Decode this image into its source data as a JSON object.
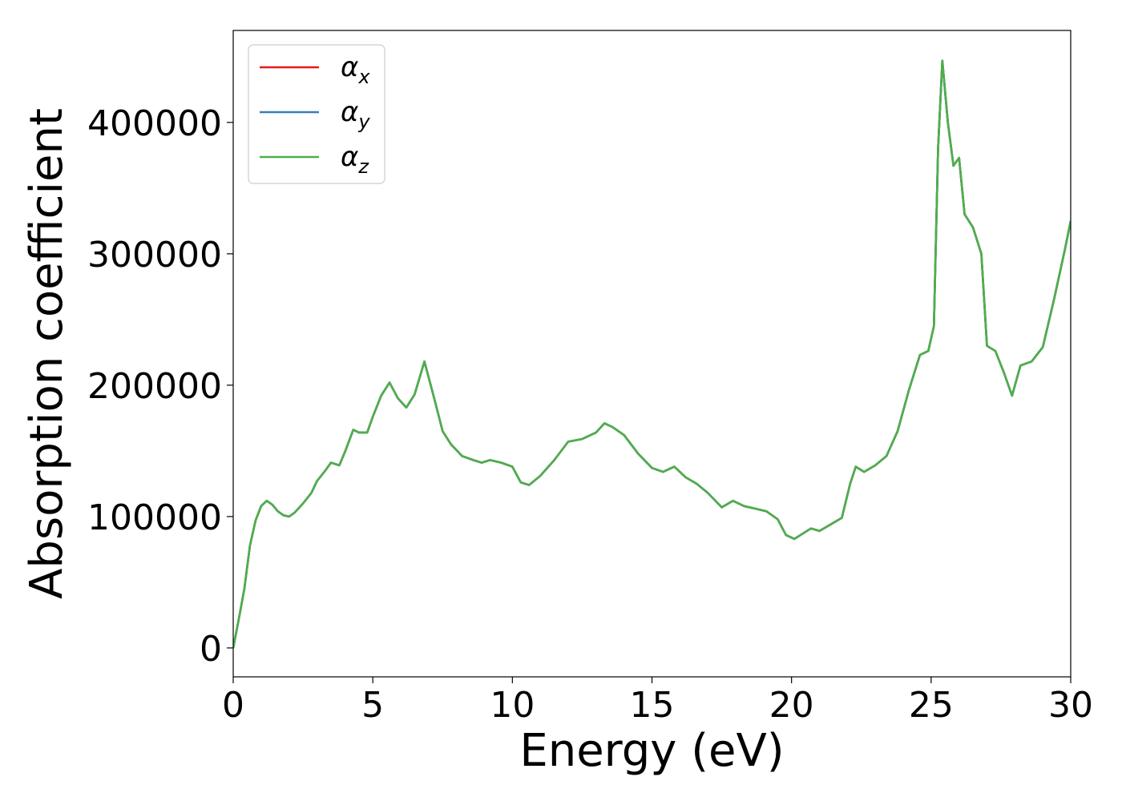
{
  "chart_data": {
    "type": "line",
    "xlabel": "Energy (eV)",
    "ylabel": "Absorption coefficient",
    "xlim": [
      0,
      30
    ],
    "ylim": [
      -22000,
      470000
    ],
    "x_ticks": [
      0,
      5,
      10,
      15,
      20,
      25,
      30
    ],
    "x_tick_labels": [
      "0",
      "5",
      "10",
      "15",
      "20",
      "25",
      "30"
    ],
    "y_ticks": [
      0,
      100000,
      200000,
      300000,
      400000
    ],
    "y_tick_labels": [
      "0",
      "100000",
      "200000",
      "300000",
      "400000"
    ],
    "grid": false,
    "legend_position": "top-left",
    "x": [
      0,
      0.2,
      0.4,
      0.6,
      0.8,
      1.0,
      1.2,
      1.4,
      1.6,
      1.8,
      2.0,
      2.2,
      2.5,
      2.8,
      3.0,
      3.3,
      3.5,
      3.8,
      4.0,
      4.3,
      4.5,
      4.8,
      5.0,
      5.3,
      5.6,
      5.9,
      6.2,
      6.5,
      6.85,
      7.2,
      7.5,
      7.8,
      8.2,
      8.6,
      8.9,
      9.2,
      9.6,
      10.0,
      10.3,
      10.6,
      11.0,
      11.5,
      12.0,
      12.5,
      13.0,
      13.3,
      13.6,
      14.0,
      14.5,
      15.0,
      15.4,
      15.8,
      16.2,
      16.6,
      17.0,
      17.5,
      17.9,
      18.3,
      18.7,
      19.1,
      19.5,
      19.8,
      20.1,
      20.4,
      20.7,
      21.0,
      21.4,
      21.8,
      22.1,
      22.3,
      22.6,
      23.0,
      23.4,
      23.8,
      24.2,
      24.6,
      24.9,
      25.1,
      25.25,
      25.4,
      25.6,
      25.8,
      26.0,
      26.2,
      26.5,
      26.8,
      27.0,
      27.3,
      27.6,
      27.9,
      28.2,
      28.6,
      29.0,
      29.4,
      29.8,
      30.0
    ],
    "series": [
      {
        "name": "α_x",
        "color": "#e41a1c",
        "values": [
          0,
          22000,
          45000,
          78000,
          97000,
          108000,
          112000,
          109000,
          104000,
          101000,
          100000,
          103000,
          110000,
          118000,
          127000,
          135000,
          141000,
          139000,
          149000,
          166000,
          164000,
          164000,
          176000,
          192000,
          202000,
          190000,
          183000,
          193000,
          218000,
          190000,
          165000,
          155000,
          146000,
          143000,
          141000,
          143000,
          141000,
          138000,
          126000,
          124000,
          131000,
          143000,
          157000,
          159000,
          164000,
          171000,
          168000,
          162000,
          148000,
          137000,
          134000,
          138000,
          130000,
          125000,
          118000,
          107000,
          112000,
          108000,
          106000,
          104000,
          98000,
          86000,
          83000,
          87000,
          91000,
          89000,
          94000,
          99000,
          125000,
          138000,
          134000,
          139000,
          146000,
          165000,
          196000,
          223000,
          226000,
          245000,
          380000,
          447000,
          400000,
          367000,
          373000,
          330000,
          320000,
          300000,
          230000,
          226000,
          210000,
          192000,
          215000,
          218000,
          229000,
          265000,
          304000,
          325000
        ]
      },
      {
        "name": "α_y",
        "color": "#377eb8",
        "values": [
          0,
          22000,
          45000,
          78000,
          97000,
          108000,
          112000,
          109000,
          104000,
          101000,
          100000,
          103000,
          110000,
          118000,
          127000,
          135000,
          141000,
          139000,
          149000,
          166000,
          164000,
          164000,
          176000,
          192000,
          202000,
          190000,
          183000,
          193000,
          218000,
          190000,
          165000,
          155000,
          146000,
          143000,
          141000,
          143000,
          141000,
          138000,
          126000,
          124000,
          131000,
          143000,
          157000,
          159000,
          164000,
          171000,
          168000,
          162000,
          148000,
          137000,
          134000,
          138000,
          130000,
          125000,
          118000,
          107000,
          112000,
          108000,
          106000,
          104000,
          98000,
          86000,
          83000,
          87000,
          91000,
          89000,
          94000,
          99000,
          125000,
          138000,
          134000,
          139000,
          146000,
          165000,
          196000,
          223000,
          226000,
          245000,
          380000,
          447000,
          400000,
          367000,
          373000,
          330000,
          320000,
          300000,
          230000,
          226000,
          210000,
          192000,
          215000,
          218000,
          229000,
          265000,
          304000,
          325000
        ]
      },
      {
        "name": "α_z",
        "color": "#4daf4a",
        "values": [
          0,
          22000,
          45000,
          78000,
          97000,
          108000,
          112000,
          109000,
          104000,
          101000,
          100000,
          103000,
          110000,
          118000,
          127000,
          135000,
          141000,
          139000,
          149000,
          166000,
          164000,
          164000,
          176000,
          192000,
          202000,
          190000,
          183000,
          193000,
          218000,
          190000,
          165000,
          155000,
          146000,
          143000,
          141000,
          143000,
          141000,
          138000,
          126000,
          124000,
          131000,
          143000,
          157000,
          159000,
          164000,
          171000,
          168000,
          162000,
          148000,
          137000,
          134000,
          138000,
          130000,
          125000,
          118000,
          107000,
          112000,
          108000,
          106000,
          104000,
          98000,
          86000,
          83000,
          87000,
          91000,
          89000,
          94000,
          99000,
          125000,
          138000,
          134000,
          139000,
          146000,
          165000,
          196000,
          223000,
          226000,
          245000,
          380000,
          447000,
          400000,
          367000,
          373000,
          330000,
          320000,
          300000,
          230000,
          226000,
          210000,
          192000,
          215000,
          218000,
          229000,
          265000,
          304000,
          325000
        ]
      }
    ],
    "legend": [
      {
        "symbol": "α",
        "sub": "x",
        "color": "#e41a1c"
      },
      {
        "symbol": "α",
        "sub": "y",
        "color": "#377eb8"
      },
      {
        "symbol": "α",
        "sub": "z",
        "color": "#4daf4a"
      }
    ]
  }
}
